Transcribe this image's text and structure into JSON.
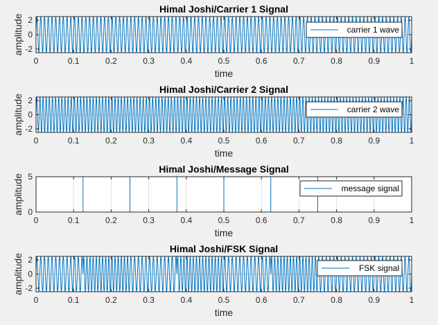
{
  "chart_data": [
    {
      "type": "line",
      "title": "Himal Joshi/Carrier 1 Signal",
      "xlabel": "time",
      "ylabel": "amplitude",
      "xlim": [
        0,
        1
      ],
      "ylim": [
        -2.5,
        2.5
      ],
      "xticks": [
        "0",
        "0.1",
        "0.2",
        "0.3",
        "0.4",
        "0.5",
        "0.6",
        "0.7",
        "0.8",
        "0.9",
        "1"
      ],
      "yticks": [
        "-2",
        "0",
        "2"
      ],
      "grid": true,
      "legend": "top-right",
      "series": [
        {
          "name": "carrier 1 wave",
          "amplitude": 2.5,
          "frequency_hz": 100,
          "color": "#0072BD"
        }
      ]
    },
    {
      "type": "line",
      "title": "Himal Joshi/Carrier 2 Signal",
      "xlabel": "time",
      "ylabel": "amplitude",
      "xlim": [
        0,
        1
      ],
      "ylim": [
        -2.5,
        2.5
      ],
      "xticks": [
        "0",
        "0.1",
        "0.2",
        "0.3",
        "0.4",
        "0.5",
        "0.6",
        "0.7",
        "0.8",
        "0.9",
        "1"
      ],
      "yticks": [
        "-2",
        "0",
        "2"
      ],
      "grid": true,
      "legend": "top-right",
      "series": [
        {
          "name": "carrier 2 wave",
          "amplitude": 2.5,
          "frequency_hz": 120,
          "color": "#0072BD"
        }
      ]
    },
    {
      "type": "line",
      "title": "Himal Joshi/Message Signal",
      "xlabel": "time",
      "ylabel": "amplitude",
      "xlim": [
        0,
        1
      ],
      "ylim": [
        0,
        5
      ],
      "xticks": [
        "0",
        "0.1",
        "0.2",
        "0.3",
        "0.4",
        "0.5",
        "0.6",
        "0.7",
        "0.8",
        "0.9",
        "1"
      ],
      "yticks": [
        "0",
        "5"
      ],
      "grid": true,
      "legend": "top-right",
      "series": [
        {
          "name": "message signal",
          "color": "#0072BD",
          "bit_duration": 0.125,
          "bits": [
            1,
            0,
            1,
            0,
            1,
            0,
            1,
            1
          ],
          "high": 5,
          "low": 0
        }
      ]
    },
    {
      "type": "line",
      "title": "Himal Joshi/FSK Signal",
      "xlabel": "time",
      "ylabel": "amplitude",
      "xlim": [
        0,
        1
      ],
      "ylim": [
        -2.5,
        2.5
      ],
      "xticks": [
        "0",
        "0.1",
        "0.2",
        "0.3",
        "0.4",
        "0.5",
        "0.6",
        "0.7",
        "0.8",
        "0.9",
        "1"
      ],
      "yticks": [
        "-2",
        "0",
        "2"
      ],
      "grid": true,
      "legend": "top-right",
      "series": [
        {
          "name": "FSK signal",
          "color": "#0072BD",
          "amplitude": 2.5,
          "frequency_bit1_hz": 100,
          "frequency_bit0_hz": 120,
          "bit_duration": 0.125,
          "bits": [
            1,
            0,
            1,
            0,
            1,
            0,
            1,
            1
          ]
        }
      ]
    }
  ]
}
